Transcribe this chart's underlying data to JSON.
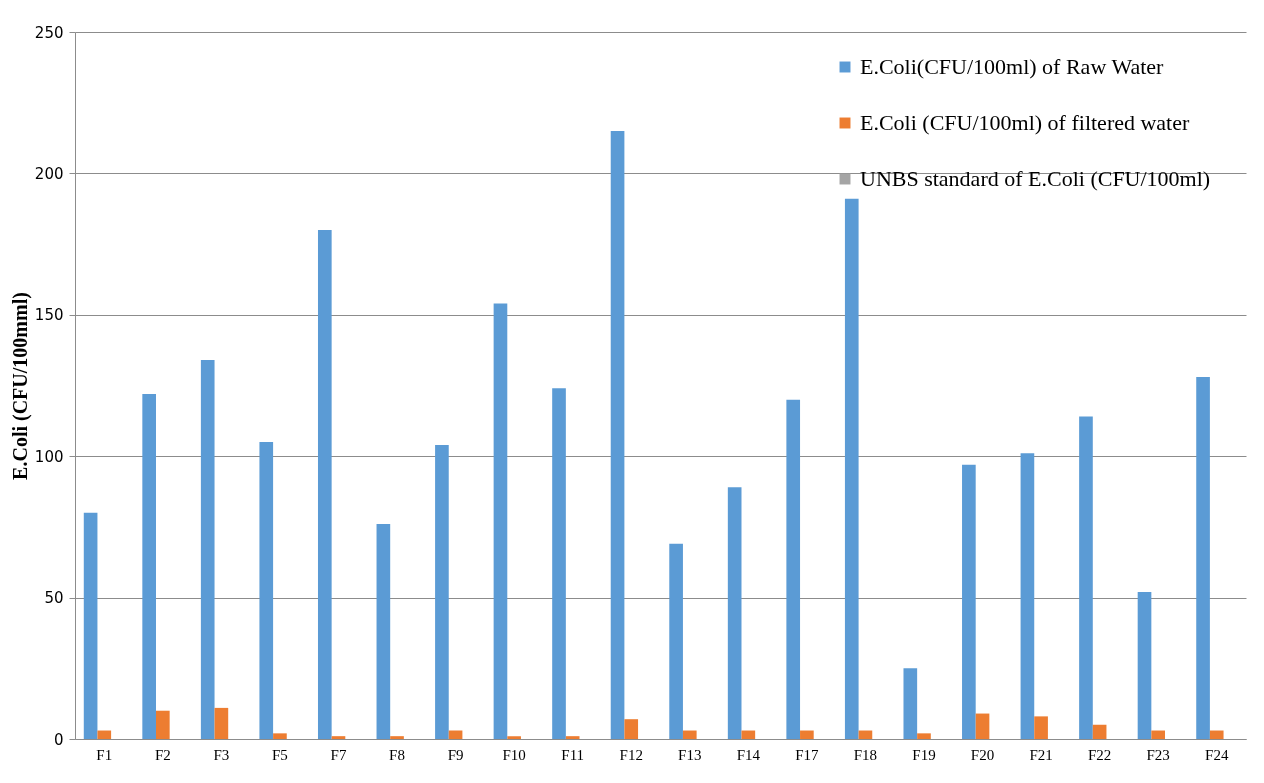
{
  "chart_data": {
    "type": "bar",
    "ylabel": "E.Coli (CFU/100mml)",
    "categories": [
      "F1",
      "F2",
      "F3",
      "F5",
      "F7",
      "F8",
      "F9",
      "F10",
      "F11",
      "F12",
      "F13",
      "F14",
      "F17",
      "F18",
      "F19",
      "F20",
      "F21",
      "F22",
      "F23",
      "F24"
    ],
    "series": [
      {
        "name": "E.Coli(CFU/100ml) of Raw Water",
        "color": "#5b9bd5",
        "values": [
          80,
          122,
          134,
          105,
          180,
          76,
          104,
          154,
          124,
          215,
          69,
          89,
          120,
          191,
          25,
          97,
          101,
          114,
          52,
          128
        ]
      },
      {
        "name": "E.Coli (CFU/100ml) of filtered water",
        "color": "#ed7d31",
        "values": [
          3,
          10,
          11,
          2,
          1,
          1,
          3,
          1,
          1,
          7,
          3,
          3,
          3,
          3,
          2,
          9,
          8,
          5,
          3,
          3
        ]
      },
      {
        "name": "UNBS  standard of  E.Coli (CFU/100ml)",
        "color": "#a5a5a5",
        "values": [
          0,
          0,
          0,
          0,
          0,
          0,
          0,
          0,
          0,
          0,
          0,
          0,
          0,
          0,
          0,
          0,
          0,
          0,
          0,
          0
        ]
      }
    ],
    "ylim": [
      0,
      250
    ],
    "yticks": [
      0,
      50,
      100,
      150,
      200,
      250
    ],
    "grid": "y",
    "legend": "top right"
  }
}
